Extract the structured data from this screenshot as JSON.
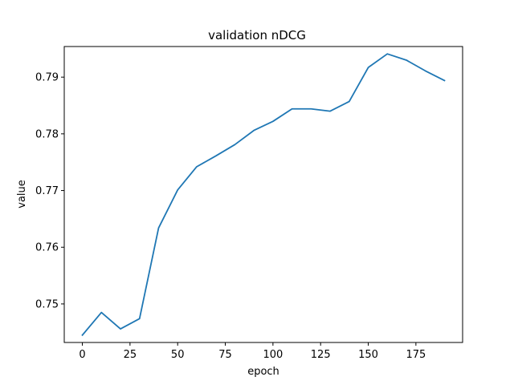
{
  "chart_data": {
    "type": "line",
    "title": "validation nDCG",
    "xlabel": "epoch",
    "ylabel": "value",
    "xlim": [
      -9.5,
      199.5
    ],
    "ylim": [
      0.7432,
      0.7954
    ],
    "xticks": [
      0,
      25,
      50,
      75,
      100,
      125,
      150,
      175
    ],
    "yticks": [
      0.75,
      0.76,
      0.77,
      0.78,
      0.79
    ],
    "xtick_labels": [
      "0",
      "25",
      "50",
      "75",
      "100",
      "125",
      "150",
      "175"
    ],
    "ytick_labels": [
      "0.75",
      "0.76",
      "0.77",
      "0.78",
      "0.79"
    ],
    "grid": false,
    "legend": false,
    "series": [
      {
        "color": "#1f77b4",
        "x": [
          0,
          10,
          20,
          30,
          40,
          50,
          60,
          70,
          80,
          90,
          100,
          110,
          120,
          130,
          140,
          150,
          160,
          170,
          180,
          190
        ],
        "y": [
          0.7445,
          0.7485,
          0.7456,
          0.7474,
          0.7634,
          0.7701,
          0.7742,
          0.7761,
          0.7781,
          0.7806,
          0.7822,
          0.7844,
          0.7844,
          0.784,
          0.7857,
          0.7917,
          0.7941,
          0.793,
          0.7911,
          0.7894
        ]
      }
    ]
  }
}
